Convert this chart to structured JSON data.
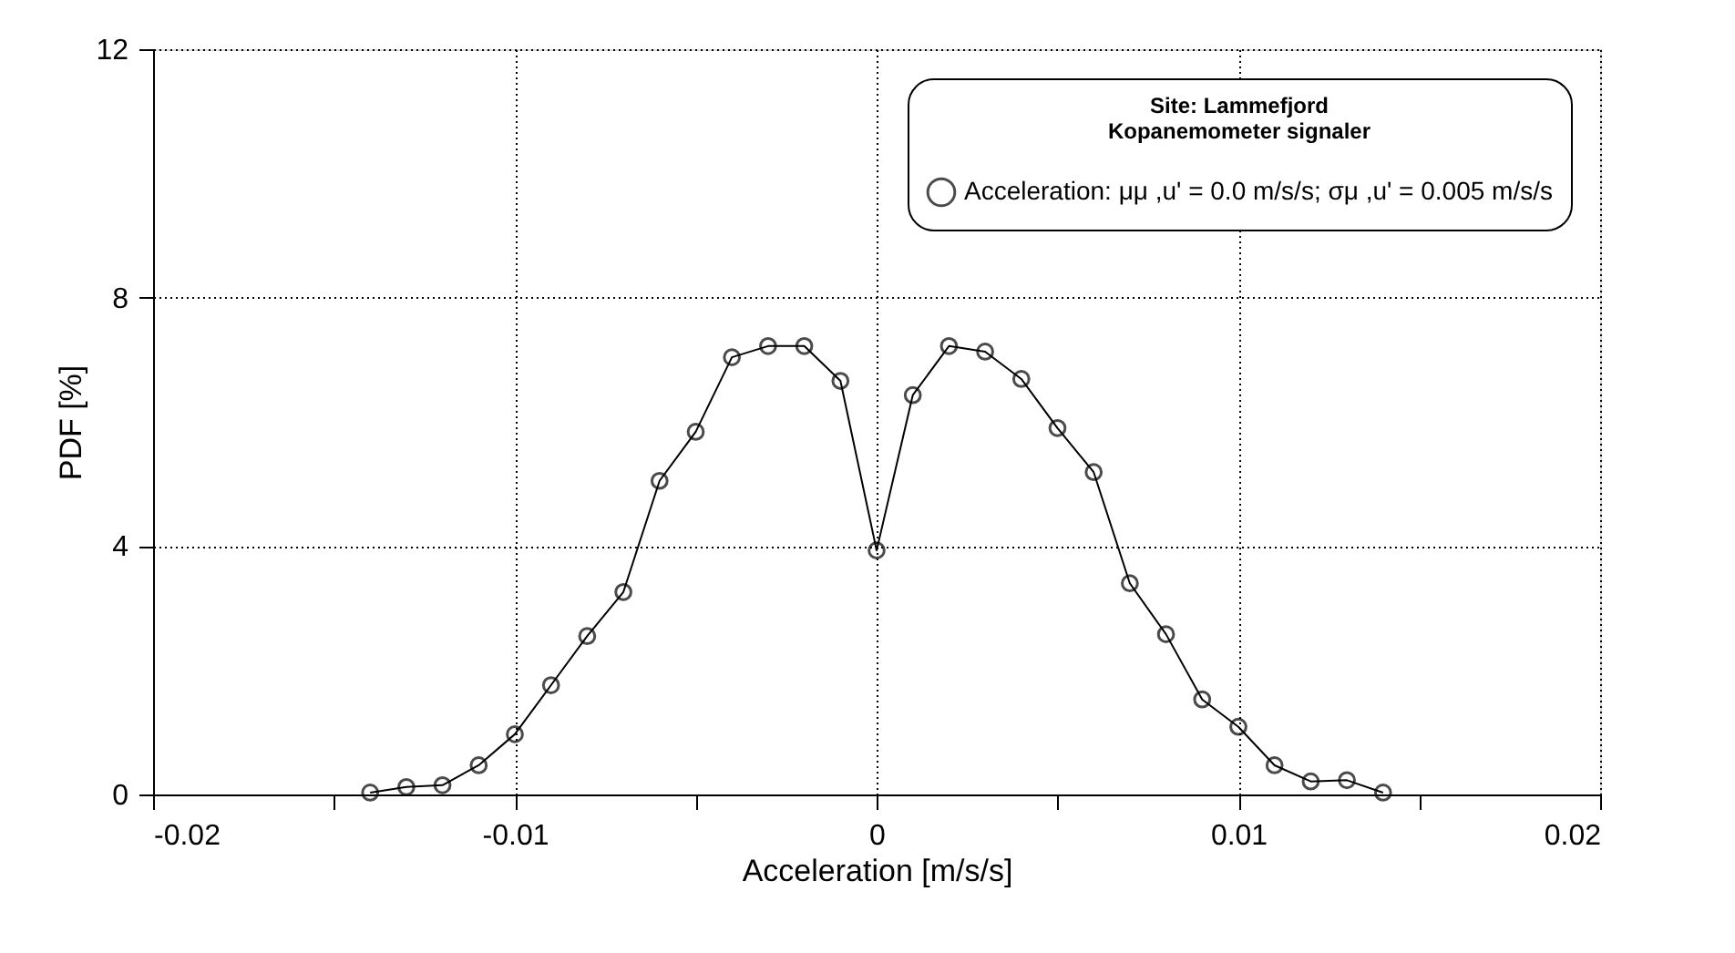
{
  "chart_data": {
    "type": "line",
    "xlabel": "Acceleration [m/s/s]",
    "ylabel": "PDF [%]",
    "legend_title": "Site: Lammefjord\nKopanemometer signaler",
    "x": [
      -0.014,
      -0.013,
      -0.012,
      -0.011,
      -0.01,
      -0.009,
      -0.008,
      -0.007,
      -0.006,
      -0.005,
      -0.004,
      -0.003,
      -0.002,
      -0.001,
      0,
      0.001,
      0.002,
      0.003,
      0.004,
      0.005,
      0.006,
      0.007,
      0.008,
      0.009,
      0.01,
      0.011,
      0.012,
      0.013,
      0.014
    ],
    "series": [
      {
        "name": "Acceleration: μμ ,u' = 0.0 m/s/s; σμ ,u' = 0.005 m/s/s",
        "color": "#000000",
        "values": [
          0.03,
          0.12,
          0.15,
          0.47,
          0.97,
          1.76,
          2.55,
          3.26,
          5.05,
          5.84,
          7.04,
          7.22,
          7.22,
          6.66,
          3.93,
          6.43,
          7.22,
          7.13,
          6.69,
          5.9,
          5.19,
          3.4,
          2.58,
          1.53,
          1.09,
          0.47,
          0.21,
          0.23,
          0.03
        ]
      }
    ],
    "xlim": [
      -0.02,
      0.02
    ],
    "xticks": [
      -0.02,
      {
        "value": -0.015,
        "label": null
      },
      -0.01,
      {
        "value": -0.005,
        "label": null
      },
      0,
      {
        "value": 0.005,
        "label": null
      },
      0.01,
      {
        "value": 0.015,
        "label": null
      },
      0.02
    ],
    "ylim": [
      0,
      12
    ],
    "yticks": [
      0,
      4,
      8,
      12
    ],
    "grid": true,
    "legend": "top right",
    "marker": "circle",
    "line_style": "solid"
  }
}
